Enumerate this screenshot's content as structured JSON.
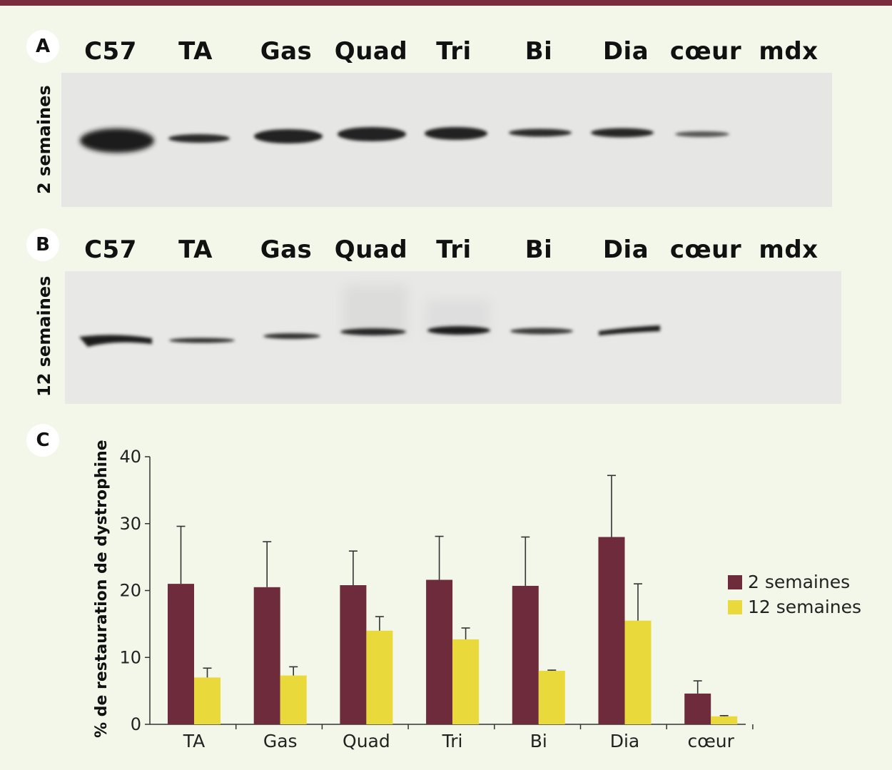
{
  "figure": {
    "panel_a": {
      "badge": "A",
      "side_label": "2 semaines",
      "lanes": [
        "C57",
        "TA",
        "Gas",
        "Quad",
        "Tri",
        "Bi",
        "Dia",
        "cœur",
        "mdx"
      ]
    },
    "panel_b": {
      "badge": "B",
      "side_label": "12 semaines",
      "lanes": [
        "C57",
        "TA",
        "Gas",
        "Quad",
        "Tri",
        "Bi",
        "Dia",
        "cœur",
        "mdx"
      ]
    },
    "panel_c": {
      "badge": "C",
      "y_axis_title": "% de restauration de dystrophine"
    }
  },
  "colors": {
    "accent": "#7a2c3e",
    "series_2w": "#6e2b3b",
    "series_12w": "#ead93a",
    "background": "#f3f7ea"
  },
  "chart_data": {
    "type": "bar",
    "categories": [
      "TA",
      "Gas",
      "Quad",
      "Tri",
      "Bi",
      "Dia",
      "cœur"
    ],
    "series": [
      {
        "name": "2 semaines",
        "values": [
          21,
          20.5,
          20.8,
          21.6,
          20.7,
          28,
          4.6
        ],
        "errors": [
          8.6,
          6.8,
          5.1,
          6.5,
          7.3,
          9.2,
          1.9
        ]
      },
      {
        "name": "12 semaines",
        "values": [
          7,
          7.3,
          14,
          12.7,
          8,
          15.5,
          1.2
        ],
        "errors": [
          1.4,
          1.3,
          2.1,
          1.7,
          0.1,
          5.5,
          0.1
        ]
      }
    ],
    "ylim": [
      0,
      40
    ],
    "yticks": [
      0,
      10,
      20,
      30,
      40
    ],
    "ylabel": "% de restauration de dystrophine",
    "legend_position": "right"
  }
}
